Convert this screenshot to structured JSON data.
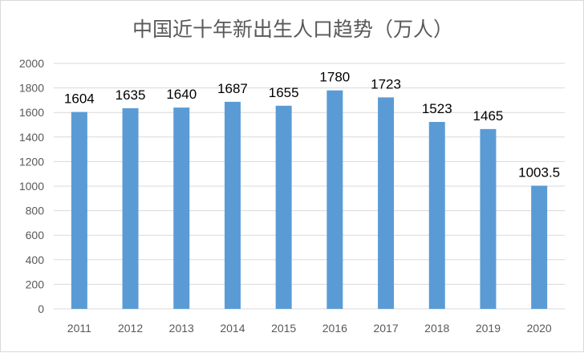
{
  "chart_data": {
    "type": "bar",
    "title": "中国近十年新出生人口趋势（万人）",
    "xlabel": "",
    "ylabel": "",
    "categories": [
      "2011",
      "2012",
      "2013",
      "2014",
      "2015",
      "2016",
      "2017",
      "2018",
      "2019",
      "2020"
    ],
    "values": [
      1604,
      1635,
      1640,
      1687,
      1655,
      1780,
      1723,
      1523,
      1465,
      1003.5
    ],
    "data_labels": [
      "1604",
      "1635",
      "1640",
      "1687",
      "1655",
      "1780",
      "1723",
      "1523",
      "1465",
      "1003.5"
    ],
    "ylim": [
      0,
      2000
    ],
    "yticks": [
      "0",
      "200",
      "400",
      "600",
      "800",
      "1000",
      "1200",
      "1400",
      "1600",
      "1800",
      "2000"
    ],
    "grid": true,
    "legend": "none",
    "colors": {
      "bar": "#5b9bd5",
      "grid": "#d9d9d9",
      "text": "#595959"
    }
  }
}
